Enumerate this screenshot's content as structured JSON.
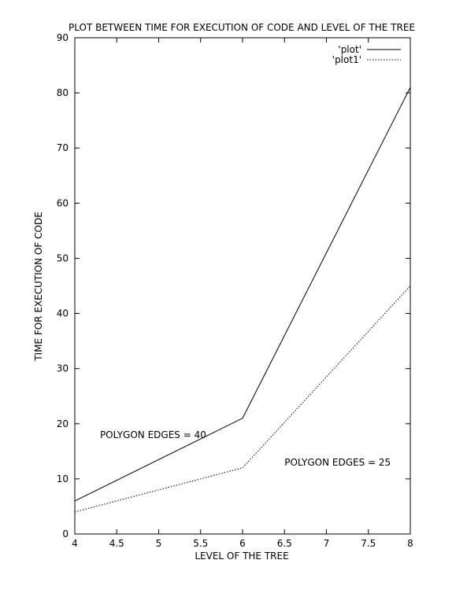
{
  "chart_data": {
    "type": "line",
    "title": "PLOT BETWEEN TIME FOR EXECUTION OF CODE AND LEVEL OF THE TREE",
    "xlabel": "LEVEL OF THE TREE",
    "ylabel": "TIME FOR EXECUTION OF CODE",
    "xlim": [
      4,
      8
    ],
    "ylim": [
      0,
      90
    ],
    "xticks": [
      4,
      4.5,
      5,
      5.5,
      6,
      6.5,
      7,
      7.5,
      8
    ],
    "xtick_labels": [
      "4",
      "4.5",
      "5",
      "5.5",
      "6",
      "6.5",
      "7",
      "7.5",
      "8"
    ],
    "yticks": [
      0,
      10,
      20,
      30,
      40,
      50,
      60,
      70,
      80,
      90
    ],
    "ytick_labels": [
      "0",
      "10",
      "20",
      "30",
      "40",
      "50",
      "60",
      "70",
      "80",
      "90"
    ],
    "grid": false,
    "legend_position": "top-right",
    "series": [
      {
        "name": "'plot'",
        "style": "solid",
        "x": [
          4,
          6,
          8
        ],
        "y": [
          6,
          21,
          81
        ]
      },
      {
        "name": "'plot1'",
        "style": "dotted",
        "x": [
          4,
          6,
          8
        ],
        "y": [
          4,
          12,
          45
        ]
      }
    ],
    "annotations": [
      {
        "text": "POLYGON EDGES = 40",
        "x": 4.3,
        "y": 18
      },
      {
        "text": "POLYGON EDGES = 25",
        "x": 6.5,
        "y": 13
      }
    ]
  }
}
